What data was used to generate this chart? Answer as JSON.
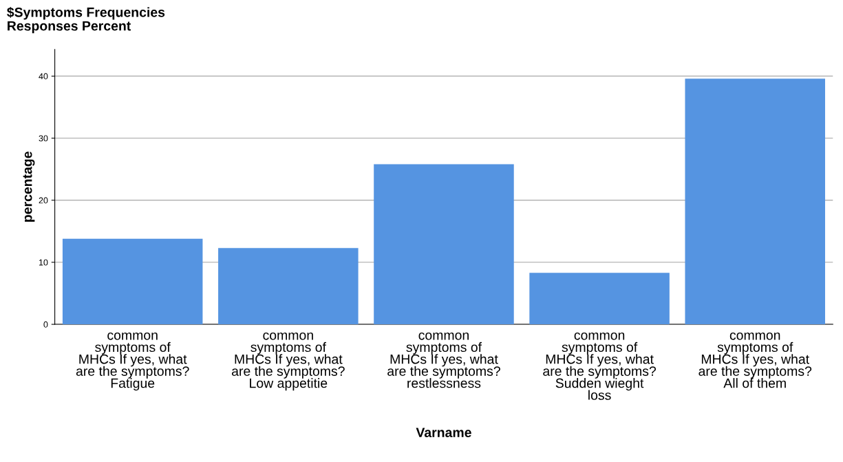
{
  "chart_data": {
    "type": "bar",
    "title": "$Symptoms Frequencies",
    "subtitle": "Responses Percent",
    "xlabel": "Varname",
    "ylabel": "percentage",
    "categories": [
      "common\nsymptoms of\nMHCs If yes, what\nare the symptoms?\nFatigue",
      "common\nsymptoms of\nMHCs If yes, what\nare the symptoms?\nLow appetitie",
      "common\nsymptoms of\nMHCs If yes, what\nare the symptoms?\nrestlessness",
      "common\nsymptoms of\nMHCs If yes, what\nare the symptoms?\nSudden wieght\nloss",
      "common\nsymptoms of\nMHCs If yes, what\nare the symptoms?\nAll of them"
    ],
    "values": [
      13.8,
      12.3,
      25.8,
      8.3,
      39.6
    ],
    "color": "#5594e1",
    "ylim": [
      0,
      44.3
    ],
    "yticks": [
      0,
      10,
      20,
      30,
      40
    ],
    "grid": "y",
    "legend": false
  }
}
